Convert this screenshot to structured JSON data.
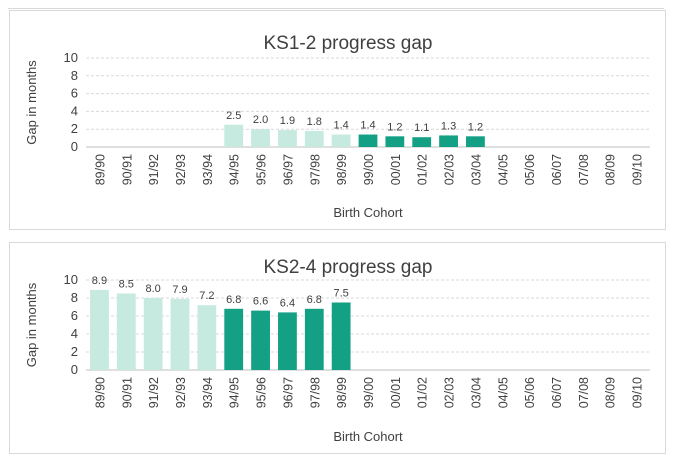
{
  "chart_data": [
    {
      "type": "bar",
      "title": "KS1-2 progress gap",
      "xlabel": "Birth Cohort",
      "ylabel": "Gap in months",
      "ylim": [
        0,
        10
      ],
      "yticks": [
        0,
        2,
        4,
        6,
        8,
        10
      ],
      "grid": true,
      "categories": [
        "89/90",
        "90/91",
        "91/92",
        "92/93",
        "93/94",
        "94/95",
        "95/96",
        "96/97",
        "97/98",
        "98/99",
        "99/00",
        "00/01",
        "01/02",
        "02/03",
        "03/04",
        "04/05",
        "05/06",
        "06/07",
        "07/08",
        "08/09",
        "09/10"
      ],
      "values": [
        null,
        null,
        null,
        null,
        null,
        2.5,
        2.0,
        1.9,
        1.8,
        1.4,
        1.4,
        1.2,
        1.1,
        1.3,
        1.2,
        null,
        null,
        null,
        null,
        null,
        null
      ],
      "data_labels": [
        null,
        null,
        null,
        null,
        null,
        "2.5",
        "2.0",
        "1.9",
        "1.8",
        "1.4",
        "1.4",
        "1.2",
        "1.1",
        "1.3",
        "1.2",
        null,
        null,
        null,
        null,
        null,
        null
      ],
      "colors": [
        null,
        null,
        null,
        null,
        null,
        "#c6e9e0",
        "#c6e9e0",
        "#c6e9e0",
        "#c6e9e0",
        "#c6e9e0",
        "#13a085",
        "#13a085",
        "#13a085",
        "#13a085",
        "#13a085",
        null,
        null,
        null,
        null,
        null,
        null
      ]
    },
    {
      "type": "bar",
      "title": "KS2-4 progress gap",
      "xlabel": "Birth Cohort",
      "ylabel": "Gap in months",
      "ylim": [
        0,
        10
      ],
      "yticks": [
        0,
        2,
        4,
        6,
        8,
        10
      ],
      "grid": true,
      "categories": [
        "89/90",
        "90/91",
        "91/92",
        "92/93",
        "93/94",
        "94/95",
        "95/96",
        "96/97",
        "97/98",
        "98/99",
        "99/00",
        "00/01",
        "01/02",
        "02/03",
        "03/04",
        "04/05",
        "05/06",
        "06/07",
        "07/08",
        "08/09",
        "09/10"
      ],
      "values": [
        8.9,
        8.5,
        8.0,
        7.9,
        7.2,
        6.8,
        6.6,
        6.4,
        6.8,
        7.5,
        null,
        null,
        null,
        null,
        null,
        null,
        null,
        null,
        null,
        null,
        null
      ],
      "data_labels": [
        "8.9",
        "8.5",
        "8.0",
        "7.9",
        "7.2",
        "6.8",
        "6.6",
        "6.4",
        "6.8",
        "7.5",
        null,
        null,
        null,
        null,
        null,
        null,
        null,
        null,
        null,
        null,
        null
      ],
      "colors": [
        "#c6e9e0",
        "#c6e9e0",
        "#c6e9e0",
        "#c6e9e0",
        "#c6e9e0",
        "#13a085",
        "#13a085",
        "#13a085",
        "#13a085",
        "#13a085",
        null,
        null,
        null,
        null,
        null,
        null,
        null,
        null,
        null,
        null,
        null
      ]
    }
  ]
}
